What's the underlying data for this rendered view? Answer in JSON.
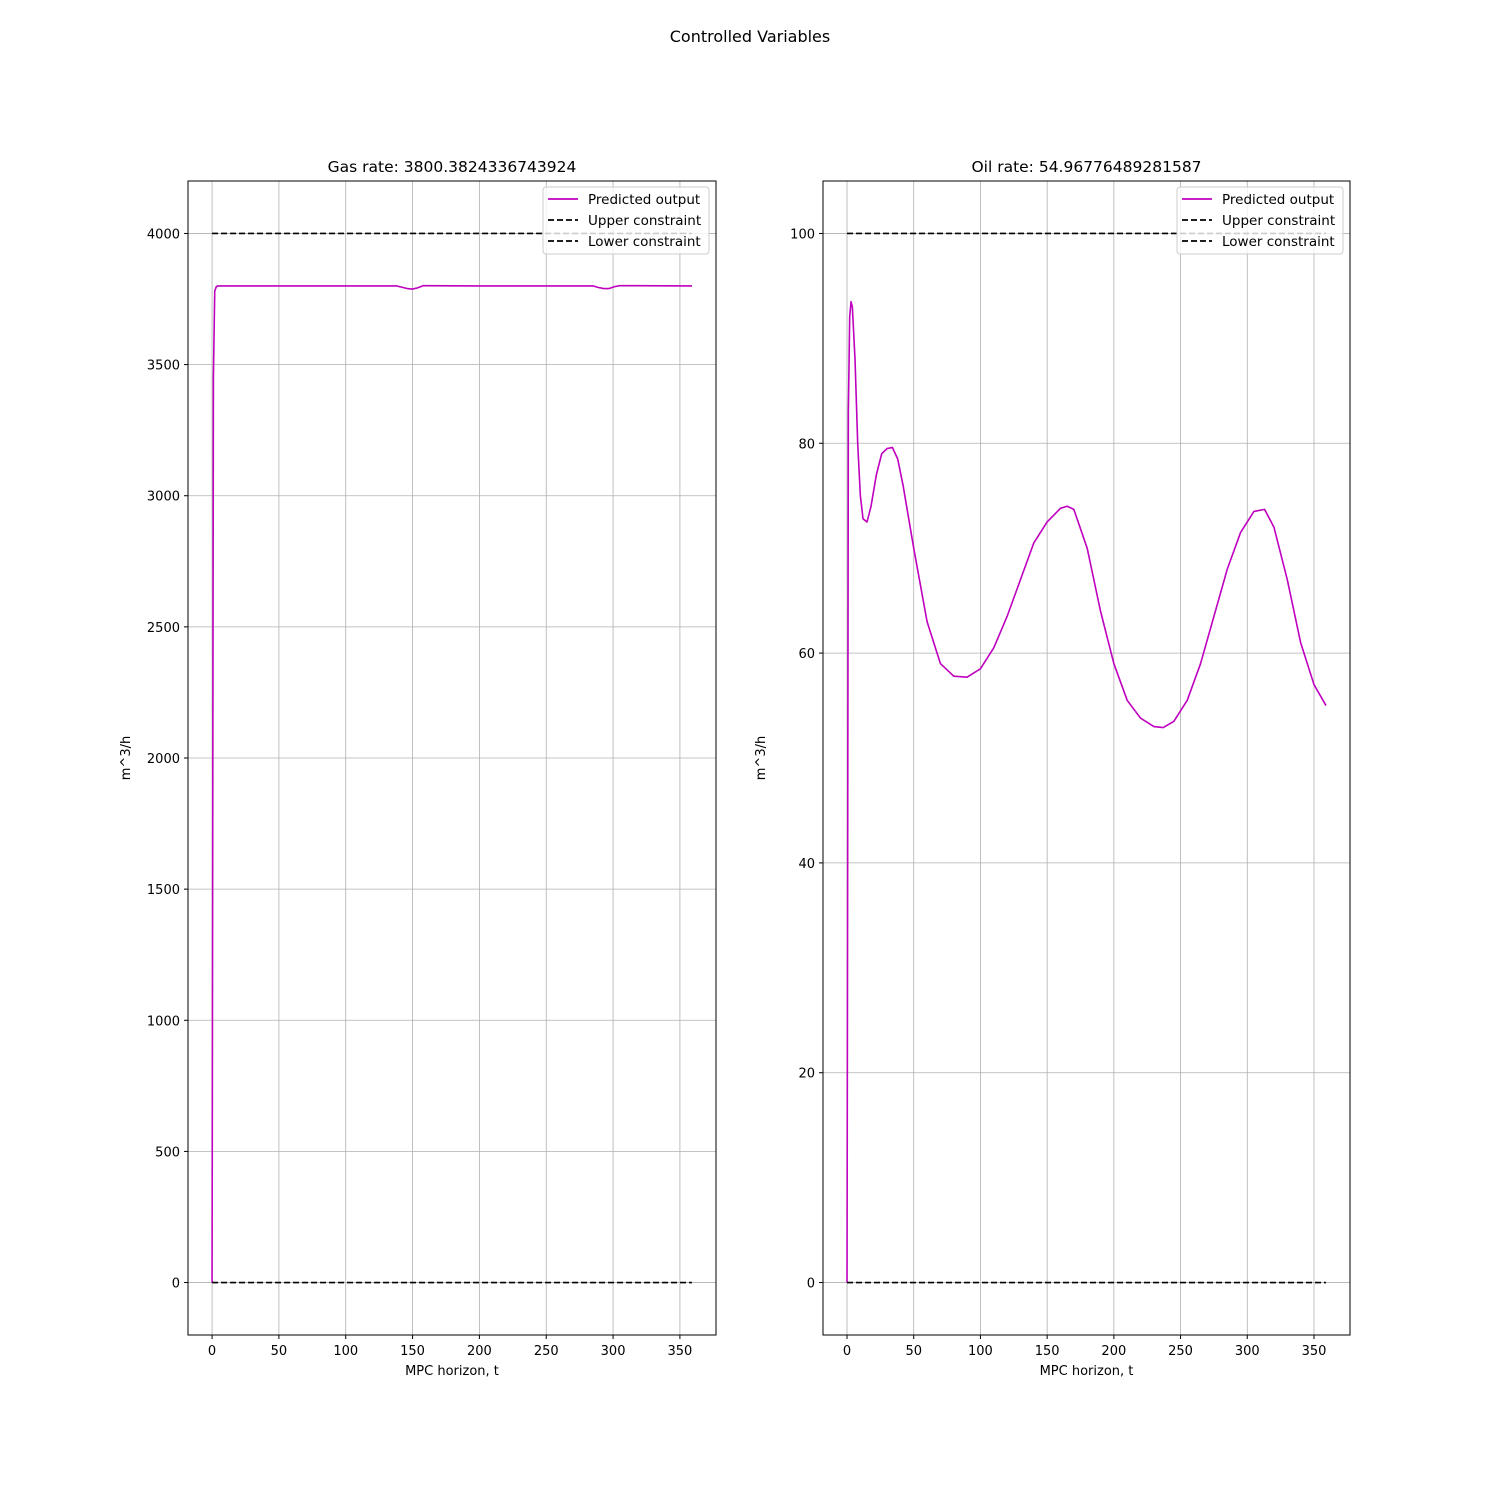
{
  "figure": {
    "suptitle": "Controlled Variables"
  },
  "colors": {
    "predicted": "#bf00bf",
    "constraint": "#000000",
    "grid": "#b0b0b0",
    "axes": "#000000"
  },
  "chart_data": [
    {
      "type": "line",
      "title": "Gas rate: 3800.3824336743924",
      "xlabel": "MPC horizon, t",
      "ylabel": "m^3/h",
      "xlim": [
        -18,
        377
      ],
      "ylim": [
        -200,
        4200
      ],
      "xticks": [
        0,
        50,
        100,
        150,
        200,
        250,
        300,
        350
      ],
      "yticks": [
        0,
        500,
        1000,
        1500,
        2000,
        2500,
        3000,
        3500,
        4000
      ],
      "grid": true,
      "legend": {
        "position": "top-right",
        "entries": [
          "Predicted output",
          "Upper constraint",
          "Lower constraint"
        ]
      },
      "series": [
        {
          "name": "Predicted output",
          "style": "solid",
          "color": "#bf00bf",
          "x": [
            0,
            1,
            2,
            3,
            4,
            10,
            50,
            100,
            138,
            142,
            146,
            150,
            154,
            158,
            200,
            250,
            285,
            289,
            293,
            297,
            301,
            305,
            359
          ],
          "y": [
            0,
            3450,
            3780,
            3795,
            3800,
            3800,
            3800,
            3800,
            3800,
            3795,
            3790,
            3788,
            3793,
            3801,
            3800,
            3800,
            3800,
            3794,
            3790,
            3790,
            3797,
            3801,
            3800
          ]
        },
        {
          "name": "Upper constraint",
          "style": "dashed",
          "color": "#000000",
          "x": [
            0,
            359
          ],
          "y": [
            4000,
            4000
          ]
        },
        {
          "name": "Lower constraint",
          "style": "dashed",
          "color": "#000000",
          "x": [
            0,
            359
          ],
          "y": [
            0,
            0
          ]
        }
      ]
    },
    {
      "type": "line",
      "title": "Oil rate: 54.96776489281587",
      "xlabel": "MPC horizon, t",
      "ylabel": "m^3/h",
      "xlim": [
        -18,
        377
      ],
      "ylim": [
        -5,
        105
      ],
      "xticks": [
        0,
        50,
        100,
        150,
        200,
        250,
        300,
        350
      ],
      "yticks": [
        0,
        20,
        40,
        60,
        80,
        100
      ],
      "grid": true,
      "legend": {
        "position": "top-right",
        "entries": [
          "Predicted output",
          "Upper constraint",
          "Lower constraint"
        ]
      },
      "series": [
        {
          "name": "Predicted output",
          "style": "solid",
          "color": "#bf00bf",
          "x": [
            0,
            1,
            2,
            3,
            4,
            6,
            8,
            10,
            12,
            15,
            18,
            22,
            26,
            30,
            34,
            38,
            42,
            50,
            60,
            70,
            80,
            90,
            100,
            110,
            120,
            130,
            140,
            150,
            160,
            165,
            170,
            180,
            190,
            200,
            210,
            220,
            230,
            237,
            245,
            255,
            265,
            275,
            285,
            295,
            305,
            313,
            320,
            330,
            340,
            350,
            359
          ],
          "y": [
            0,
            83,
            92,
            93.5,
            93,
            88,
            80,
            75,
            72.8,
            72.5,
            74,
            77,
            79,
            79.5,
            79.6,
            78.5,
            76,
            70,
            63,
            59,
            57.8,
            57.7,
            58.5,
            60.5,
            63.5,
            67,
            70.5,
            72.5,
            73.8,
            74,
            73.7,
            70,
            64,
            59,
            55.5,
            53.8,
            53,
            52.9,
            53.5,
            55.5,
            59,
            63.5,
            68,
            71.5,
            73.5,
            73.7,
            72,
            67,
            61,
            57,
            55
          ]
        },
        {
          "name": "Upper constraint",
          "style": "dashed",
          "color": "#000000",
          "x": [
            0,
            359
          ],
          "y": [
            100,
            100
          ]
        },
        {
          "name": "Lower constraint",
          "style": "dashed",
          "color": "#000000",
          "x": [
            0,
            359
          ],
          "y": [
            0,
            0
          ]
        }
      ]
    }
  ]
}
